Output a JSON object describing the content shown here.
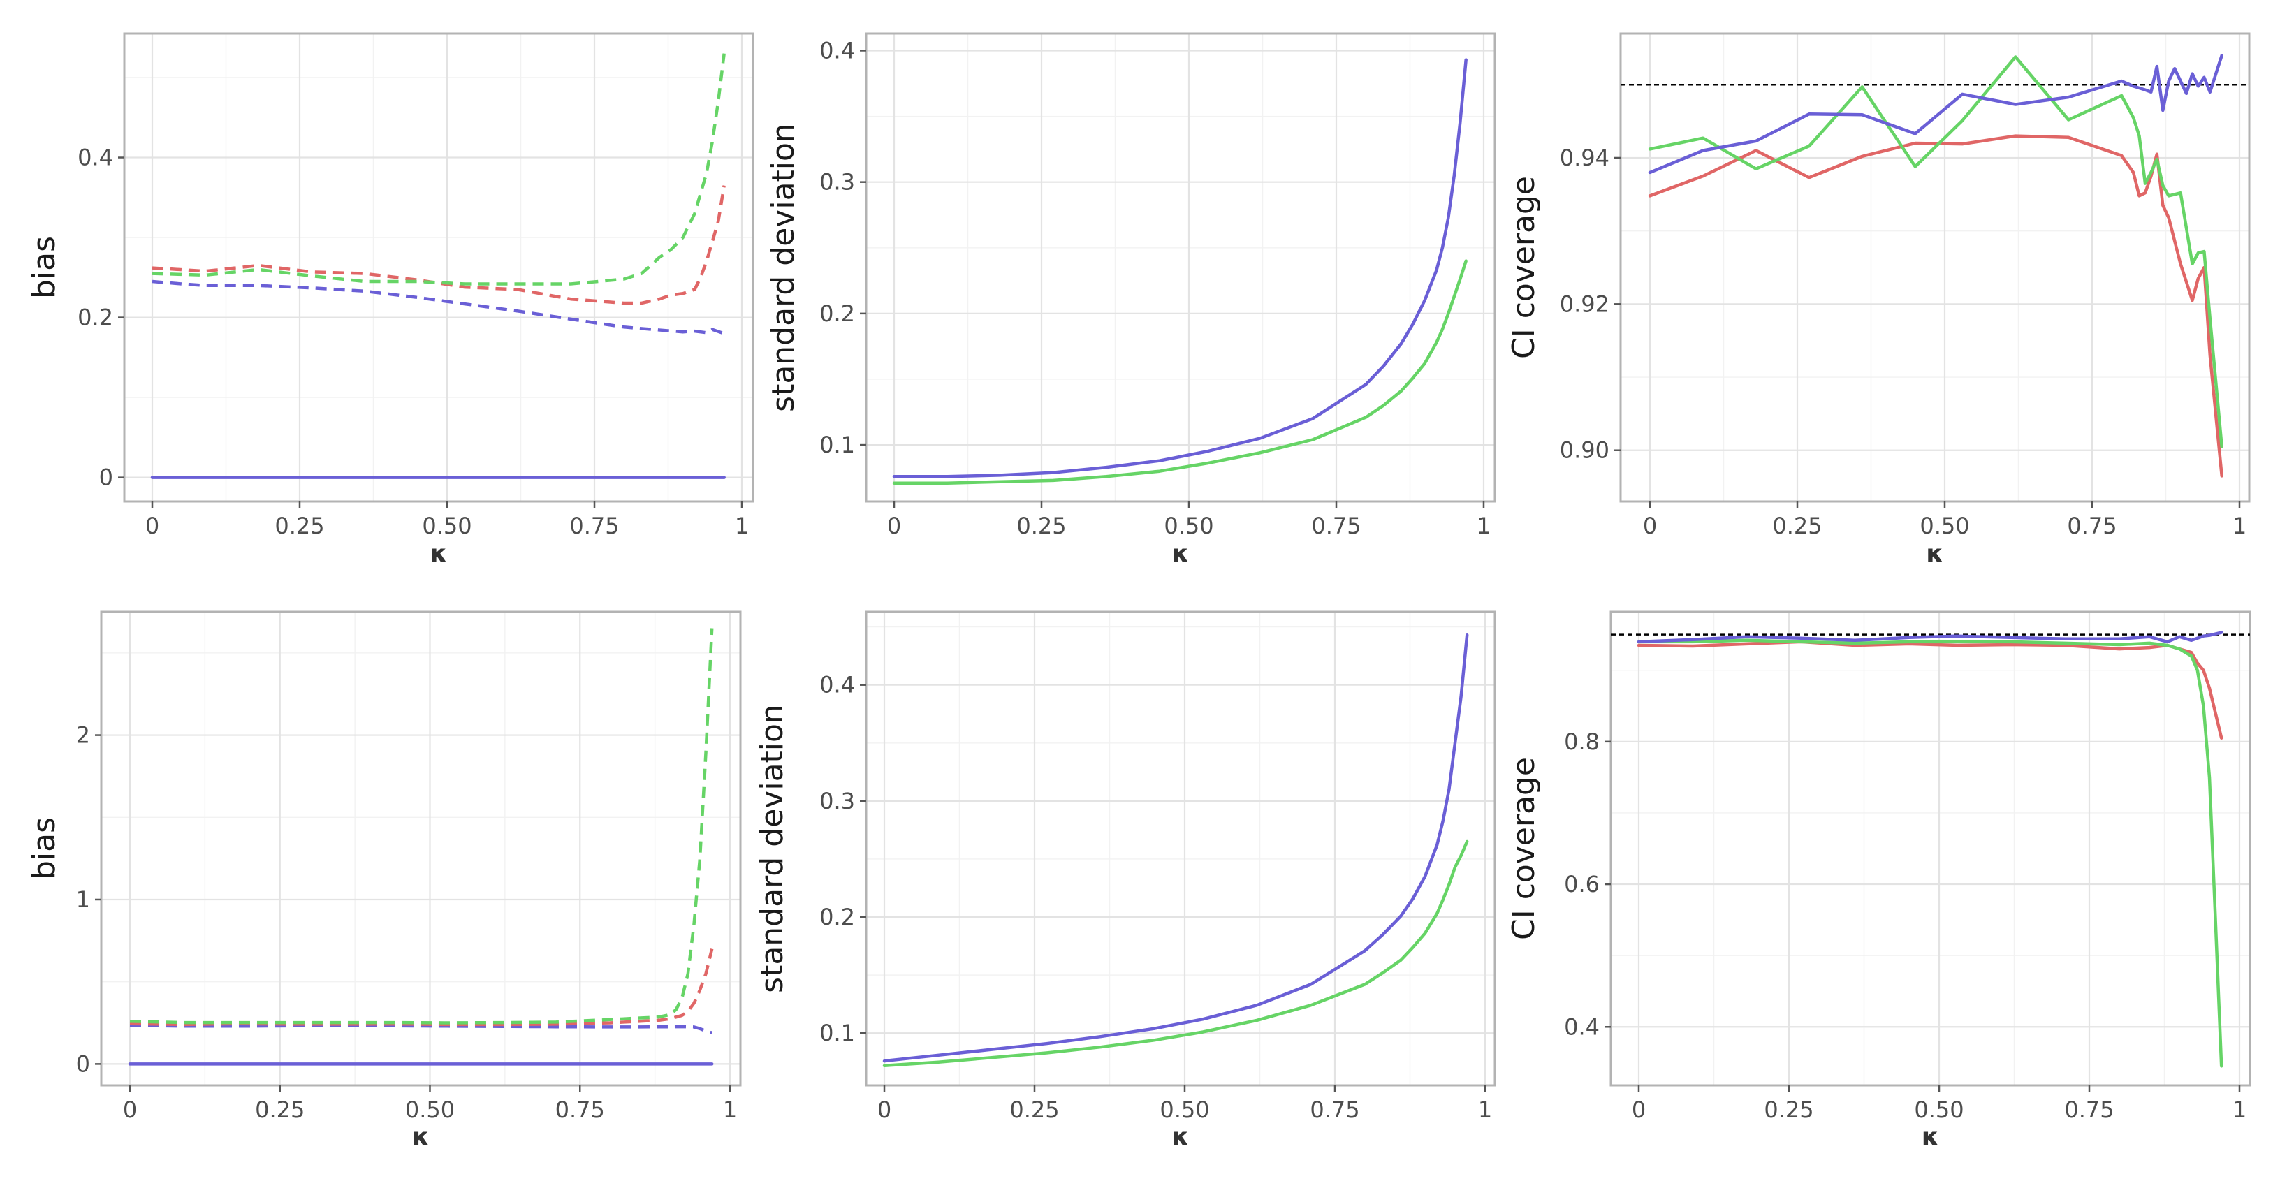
{
  "colors": {
    "blue": "#6a5fd6",
    "red": "#e06666",
    "green": "#66d466",
    "reference": "#000000"
  },
  "chart_data": [
    {
      "type": "line",
      "panel": "top-left",
      "xlabel": "κ",
      "ylabel": "bias",
      "xlim": [
        0,
        1
      ],
      "ylim": [
        -0.03,
        0.555
      ],
      "xticks": [
        0,
        0.25,
        0.5,
        0.75,
        1
      ],
      "xtick_labels": [
        "0",
        "0.25",
        "0.50",
        "0.75",
        "1"
      ],
      "yticks": [
        0,
        0.2,
        0.4
      ],
      "ytick_labels": [
        "0",
        "0.2",
        "0.4"
      ],
      "reference": null,
      "series": [
        {
          "name": "blue-solid",
          "color": "blue",
          "dash": "solid",
          "x": [
            0,
            0.25,
            0.5,
            0.75,
            0.97
          ],
          "y": [
            0,
            0,
            0,
            0,
            0
          ]
        },
        {
          "name": "blue-dashed",
          "color": "blue",
          "dash": "dashed",
          "x": [
            0,
            0.05,
            0.09,
            0.18,
            0.27,
            0.36,
            0.45,
            0.53,
            0.62,
            0.71,
            0.8,
            0.85,
            0.9,
            0.92,
            0.94,
            0.95,
            0.97
          ],
          "y": [
            0.245,
            0.242,
            0.24,
            0.24,
            0.237,
            0.233,
            0.225,
            0.217,
            0.208,
            0.198,
            0.188,
            0.185,
            0.182,
            0.183,
            0.181,
            0.185,
            0.18
          ]
        },
        {
          "name": "red-dashed",
          "color": "red",
          "dash": "dashed",
          "x": [
            0,
            0.09,
            0.18,
            0.27,
            0.36,
            0.45,
            0.53,
            0.62,
            0.71,
            0.8,
            0.83,
            0.86,
            0.88,
            0.9,
            0.92,
            0.93,
            0.94,
            0.95,
            0.96,
            0.97
          ],
          "y": [
            0.262,
            0.258,
            0.265,
            0.257,
            0.255,
            0.247,
            0.238,
            0.235,
            0.223,
            0.218,
            0.218,
            0.223,
            0.228,
            0.23,
            0.235,
            0.25,
            0.27,
            0.295,
            0.32,
            0.365
          ]
        },
        {
          "name": "green-dashed",
          "color": "green",
          "dash": "dashed",
          "x": [
            0,
            0.09,
            0.18,
            0.27,
            0.36,
            0.45,
            0.53,
            0.62,
            0.71,
            0.8,
            0.83,
            0.86,
            0.88,
            0.9,
            0.92,
            0.93,
            0.94,
            0.95,
            0.96,
            0.97
          ],
          "y": [
            0.255,
            0.253,
            0.26,
            0.252,
            0.245,
            0.245,
            0.242,
            0.242,
            0.242,
            0.248,
            0.255,
            0.275,
            0.285,
            0.3,
            0.33,
            0.355,
            0.38,
            0.42,
            0.47,
            0.53
          ]
        }
      ]
    },
    {
      "type": "line",
      "panel": "top-middle",
      "xlabel": "κ",
      "ylabel": "standard deviation",
      "xlim": [
        0,
        1
      ],
      "ylim": [
        0.057,
        0.413
      ],
      "xticks": [
        0,
        0.25,
        0.5,
        0.75,
        1
      ],
      "xtick_labels": [
        "0",
        "0.25",
        "0.50",
        "0.75",
        "1"
      ],
      "yticks": [
        0.1,
        0.2,
        0.3,
        0.4
      ],
      "ytick_labels": [
        "0.1",
        "0.2",
        "0.3",
        "0.4"
      ],
      "reference": null,
      "series": [
        {
          "name": "blue",
          "color": "blue",
          "dash": "solid",
          "x": [
            0,
            0.09,
            0.18,
            0.27,
            0.36,
            0.45,
            0.53,
            0.62,
            0.71,
            0.8,
            0.83,
            0.86,
            0.88,
            0.9,
            0.92,
            0.93,
            0.94,
            0.95,
            0.96,
            0.97
          ],
          "y": [
            0.076,
            0.076,
            0.077,
            0.079,
            0.083,
            0.088,
            0.095,
            0.105,
            0.12,
            0.146,
            0.16,
            0.177,
            0.192,
            0.21,
            0.233,
            0.25,
            0.273,
            0.305,
            0.345,
            0.393
          ]
        },
        {
          "name": "green",
          "color": "green",
          "dash": "solid",
          "x": [
            0,
            0.09,
            0.18,
            0.27,
            0.36,
            0.45,
            0.53,
            0.62,
            0.71,
            0.8,
            0.83,
            0.86,
            0.88,
            0.9,
            0.92,
            0.93,
            0.94,
            0.95,
            0.96,
            0.97
          ],
          "y": [
            0.071,
            0.071,
            0.072,
            0.073,
            0.076,
            0.08,
            0.086,
            0.094,
            0.104,
            0.121,
            0.13,
            0.141,
            0.151,
            0.162,
            0.178,
            0.188,
            0.2,
            0.213,
            0.226,
            0.24
          ]
        }
      ]
    },
    {
      "type": "line",
      "panel": "top-right",
      "xlabel": "κ",
      "ylabel": "CI coverage",
      "xlim": [
        0,
        1
      ],
      "ylim": [
        0.893,
        0.957
      ],
      "xticks": [
        0,
        0.25,
        0.5,
        0.75,
        1
      ],
      "xtick_labels": [
        "0",
        "0.25",
        "0.50",
        "0.75",
        "1"
      ],
      "yticks": [
        0.9,
        0.92,
        0.94
      ],
      "ytick_labels": [
        "0.90",
        "0.92",
        "0.94"
      ],
      "reference": 0.95,
      "series": [
        {
          "name": "red",
          "color": "red",
          "dash": "solid",
          "x": [
            0,
            0.09,
            0.18,
            0.27,
            0.36,
            0.45,
            0.53,
            0.62,
            0.71,
            0.8,
            0.82,
            0.83,
            0.84,
            0.85,
            0.86,
            0.87,
            0.88,
            0.9,
            0.92,
            0.93,
            0.94,
            0.95,
            0.97
          ],
          "y": [
            0.9348,
            0.9375,
            0.941,
            0.9373,
            0.9402,
            0.942,
            0.9419,
            0.943,
            0.9428,
            0.9403,
            0.938,
            0.9348,
            0.9352,
            0.9375,
            0.9405,
            0.9335,
            0.9318,
            0.9255,
            0.9205,
            0.9235,
            0.925,
            0.913,
            0.8965
          ]
        },
        {
          "name": "green",
          "color": "green",
          "dash": "solid",
          "x": [
            0,
            0.09,
            0.18,
            0.27,
            0.36,
            0.45,
            0.53,
            0.62,
            0.71,
            0.8,
            0.82,
            0.83,
            0.84,
            0.85,
            0.86,
            0.87,
            0.88,
            0.9,
            0.92,
            0.93,
            0.94,
            0.95,
            0.97
          ],
          "y": [
            0.9412,
            0.9427,
            0.9385,
            0.9416,
            0.9497,
            0.9388,
            0.9451,
            0.9538,
            0.9452,
            0.9485,
            0.9455,
            0.943,
            0.9365,
            0.938,
            0.9398,
            0.9362,
            0.9348,
            0.9352,
            0.9255,
            0.927,
            0.9272,
            0.918,
            0.9005
          ]
        },
        {
          "name": "blue",
          "color": "blue",
          "dash": "solid",
          "x": [
            0,
            0.09,
            0.18,
            0.27,
            0.36,
            0.45,
            0.53,
            0.62,
            0.71,
            0.8,
            0.82,
            0.84,
            0.85,
            0.86,
            0.87,
            0.88,
            0.89,
            0.9,
            0.91,
            0.92,
            0.93,
            0.94,
            0.95,
            0.97
          ],
          "y": [
            0.938,
            0.941,
            0.9423,
            0.946,
            0.9459,
            0.9433,
            0.9487,
            0.9473,
            0.9483,
            0.9505,
            0.9498,
            0.9493,
            0.949,
            0.9525,
            0.9465,
            0.9505,
            0.9522,
            0.9505,
            0.9488,
            0.9515,
            0.9498,
            0.951,
            0.949,
            0.954
          ]
        }
      ]
    },
    {
      "type": "line",
      "panel": "bottom-left",
      "xlabel": "κ",
      "ylabel": "bias",
      "xlim": [
        0,
        1
      ],
      "ylim": [
        -0.13,
        2.75
      ],
      "xticks": [
        0,
        0.25,
        0.5,
        0.75,
        1
      ],
      "xtick_labels": [
        "0",
        "0.25",
        "0.50",
        "0.75",
        "1"
      ],
      "yticks": [
        0,
        1,
        2
      ],
      "ytick_labels": [
        "0",
        "1",
        "2"
      ],
      "reference": null,
      "series": [
        {
          "name": "blue-solid",
          "color": "blue",
          "dash": "solid",
          "x": [
            0,
            0.25,
            0.5,
            0.75,
            0.97
          ],
          "y": [
            0,
            0,
            0,
            0,
            0
          ]
        },
        {
          "name": "blue-dashed",
          "color": "blue",
          "dash": "dashed",
          "x": [
            0,
            0.09,
            0.18,
            0.27,
            0.36,
            0.45,
            0.53,
            0.62,
            0.71,
            0.8,
            0.85,
            0.88,
            0.9,
            0.92,
            0.94,
            0.95,
            0.96,
            0.97
          ],
          "y": [
            0.235,
            0.23,
            0.23,
            0.232,
            0.232,
            0.232,
            0.23,
            0.228,
            0.226,
            0.225,
            0.225,
            0.226,
            0.226,
            0.227,
            0.225,
            0.215,
            0.2,
            0.19
          ]
        },
        {
          "name": "red-dashed",
          "color": "red",
          "dash": "dashed",
          "x": [
            0,
            0.09,
            0.18,
            0.27,
            0.36,
            0.45,
            0.53,
            0.62,
            0.71,
            0.8,
            0.85,
            0.88,
            0.9,
            0.92,
            0.93,
            0.94,
            0.95,
            0.96,
            0.97
          ],
          "y": [
            0.245,
            0.24,
            0.245,
            0.242,
            0.242,
            0.243,
            0.24,
            0.24,
            0.242,
            0.25,
            0.26,
            0.265,
            0.275,
            0.295,
            0.32,
            0.37,
            0.45,
            0.55,
            0.7
          ]
        },
        {
          "name": "green-dashed",
          "color": "green",
          "dash": "dashed",
          "x": [
            0,
            0.09,
            0.18,
            0.27,
            0.36,
            0.45,
            0.53,
            0.62,
            0.71,
            0.8,
            0.85,
            0.88,
            0.9,
            0.91,
            0.92,
            0.93,
            0.94,
            0.95,
            0.96,
            0.97
          ],
          "y": [
            0.26,
            0.252,
            0.252,
            0.252,
            0.252,
            0.252,
            0.25,
            0.252,
            0.255,
            0.27,
            0.28,
            0.285,
            0.3,
            0.33,
            0.4,
            0.55,
            0.85,
            1.25,
            1.9,
            2.65
          ]
        }
      ]
    },
    {
      "type": "line",
      "panel": "bottom-middle",
      "xlabel": "κ",
      "ylabel": "standard deviation",
      "xlim": [
        0,
        1
      ],
      "ylim": [
        0.055,
        0.463
      ],
      "xticks": [
        0,
        0.25,
        0.5,
        0.75,
        1
      ],
      "xtick_labels": [
        "0",
        "0.25",
        "0.50",
        "0.75",
        "1"
      ],
      "yticks": [
        0.1,
        0.2,
        0.3,
        0.4
      ],
      "ytick_labels": [
        "0.1",
        "0.2",
        "0.3",
        "0.4"
      ],
      "reference": null,
      "series": [
        {
          "name": "blue",
          "color": "blue",
          "dash": "solid",
          "x": [
            0,
            0.09,
            0.18,
            0.27,
            0.36,
            0.45,
            0.53,
            0.62,
            0.71,
            0.8,
            0.83,
            0.86,
            0.88,
            0.9,
            0.92,
            0.93,
            0.94,
            0.95,
            0.96,
            0.97
          ],
          "y": [
            0.076,
            0.081,
            0.086,
            0.091,
            0.097,
            0.104,
            0.112,
            0.124,
            0.142,
            0.171,
            0.185,
            0.201,
            0.216,
            0.235,
            0.262,
            0.283,
            0.31,
            0.35,
            0.39,
            0.443
          ]
        },
        {
          "name": "green",
          "color": "green",
          "dash": "solid",
          "x": [
            0,
            0.09,
            0.18,
            0.27,
            0.36,
            0.45,
            0.53,
            0.62,
            0.71,
            0.8,
            0.83,
            0.86,
            0.88,
            0.9,
            0.92,
            0.93,
            0.94,
            0.95,
            0.96,
            0.97
          ],
          "y": [
            0.072,
            0.075,
            0.079,
            0.083,
            0.088,
            0.094,
            0.101,
            0.111,
            0.124,
            0.142,
            0.152,
            0.163,
            0.174,
            0.186,
            0.203,
            0.215,
            0.228,
            0.243,
            0.253,
            0.265
          ]
        }
      ]
    },
    {
      "type": "line",
      "panel": "bottom-right",
      "xlabel": "κ",
      "ylabel": "CI coverage",
      "xlim": [
        0,
        1
      ],
      "ylim": [
        0.318,
        0.982
      ],
      "xticks": [
        0,
        0.25,
        0.5,
        0.75,
        1
      ],
      "xtick_labels": [
        "0",
        "0.25",
        "0.50",
        "0.75",
        "1"
      ],
      "yticks": [
        0.4,
        0.6,
        0.8
      ],
      "ytick_labels": [
        "0.4",
        "0.6",
        "0.8"
      ],
      "reference": 0.95,
      "series": [
        {
          "name": "red",
          "color": "red",
          "dash": "solid",
          "x": [
            0,
            0.09,
            0.18,
            0.27,
            0.36,
            0.45,
            0.53,
            0.62,
            0.71,
            0.8,
            0.85,
            0.88,
            0.9,
            0.92,
            0.93,
            0.94,
            0.95,
            0.97
          ],
          "y": [
            0.935,
            0.934,
            0.937,
            0.94,
            0.935,
            0.937,
            0.935,
            0.936,
            0.935,
            0.93,
            0.932,
            0.935,
            0.93,
            0.925,
            0.91,
            0.9,
            0.875,
            0.805
          ]
        },
        {
          "name": "green",
          "color": "green",
          "dash": "solid",
          "x": [
            0,
            0.09,
            0.18,
            0.27,
            0.36,
            0.45,
            0.53,
            0.62,
            0.71,
            0.8,
            0.85,
            0.88,
            0.9,
            0.92,
            0.93,
            0.94,
            0.95,
            0.96,
            0.97
          ],
          "y": [
            0.94,
            0.94,
            0.942,
            0.94,
            0.938,
            0.94,
            0.94,
            0.94,
            0.938,
            0.936,
            0.938,
            0.935,
            0.93,
            0.92,
            0.9,
            0.85,
            0.75,
            0.55,
            0.345
          ]
        },
        {
          "name": "blue",
          "color": "blue",
          "dash": "solid",
          "x": [
            0,
            0.09,
            0.18,
            0.27,
            0.36,
            0.45,
            0.53,
            0.62,
            0.71,
            0.8,
            0.85,
            0.88,
            0.9,
            0.92,
            0.94,
            0.95,
            0.97
          ],
          "y": [
            0.94,
            0.943,
            0.947,
            0.945,
            0.942,
            0.946,
            0.948,
            0.946,
            0.944,
            0.944,
            0.947,
            0.94,
            0.947,
            0.942,
            0.948,
            0.949,
            0.953
          ]
        }
      ]
    }
  ]
}
